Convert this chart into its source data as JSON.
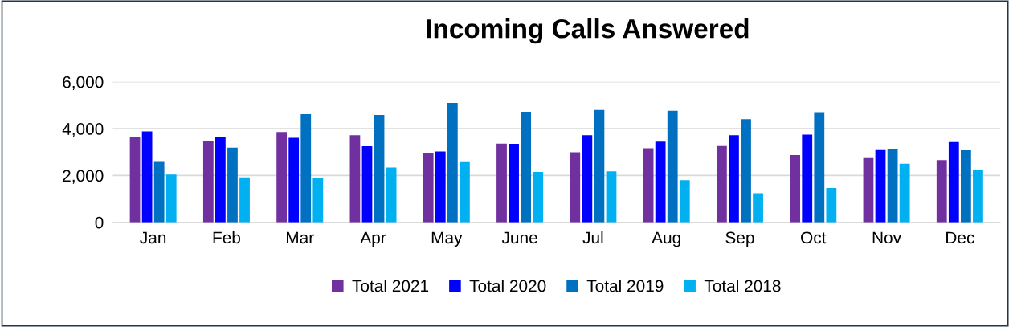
{
  "chart_data": {
    "type": "bar",
    "title": "Incoming Calls Answered",
    "categories": [
      "Jan",
      "Feb",
      "Mar",
      "Apr",
      "May",
      "June",
      "Jul",
      "Aug",
      "Sep",
      "Oct",
      "Nov",
      "Dec"
    ],
    "series": [
      {
        "name": "Total 2021",
        "color": "#7030a0",
        "values": [
          3650,
          3460,
          3860,
          3720,
          2960,
          3360,
          2990,
          3160,
          3260,
          2870,
          2740,
          2660
        ]
      },
      {
        "name": "Total 2020",
        "color": "#0000ff",
        "values": [
          3880,
          3630,
          3610,
          3250,
          3030,
          3350,
          3720,
          3450,
          3720,
          3750,
          3090,
          3430
        ]
      },
      {
        "name": "Total 2019",
        "color": "#0070c0",
        "values": [
          2580,
          3190,
          4620,
          4590,
          5100,
          4700,
          4800,
          4770,
          4410,
          4670,
          3120,
          3080
        ]
      },
      {
        "name": "Total 2018",
        "color": "#00b0f0",
        "values": [
          2040,
          1920,
          1900,
          2340,
          2570,
          2150,
          2180,
          1800,
          1240,
          1470,
          2500,
          2220
        ]
      }
    ],
    "ylim": [
      0,
      6000
    ],
    "yticks": [
      {
        "value": 0,
        "label": "0"
      },
      {
        "value": 2000,
        "label": "2,000"
      },
      {
        "value": 4000,
        "label": "4,000"
      },
      {
        "value": 6000,
        "label": "6,000"
      }
    ],
    "grid": "y",
    "legend": "bottom"
  }
}
